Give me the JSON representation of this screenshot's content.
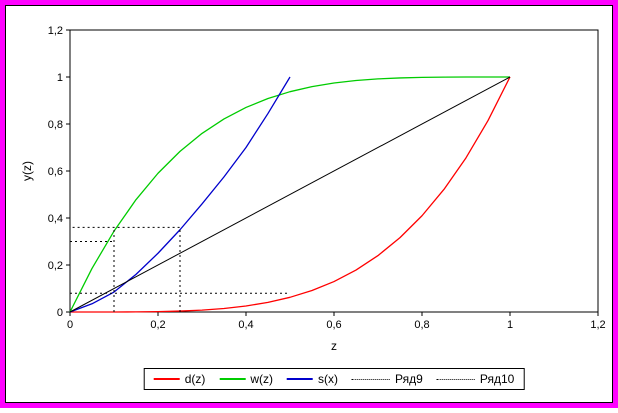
{
  "window": {
    "border_color": "#ff00ff",
    "background": "#ffffff"
  },
  "chart_data": {
    "type": "line",
    "title": "",
    "xlabel": "z",
    "ylabel": "y(z)",
    "xlim": [
      0,
      1.2
    ],
    "ylim": [
      0,
      1.2
    ],
    "grid": false,
    "legend_position": "bottom-center",
    "x_ticks": {
      "values": [
        0,
        0.2,
        0.4,
        0.6,
        0.8,
        1,
        1.2
      ],
      "labels": [
        "0",
        "0,2",
        "0,4",
        "0,6",
        "0,8",
        "1",
        "1,2"
      ]
    },
    "y_ticks": {
      "values": [
        0,
        0.2,
        0.4,
        0.6,
        0.8,
        1,
        1.2
      ],
      "labels": [
        "0",
        "0,2",
        "0,4",
        "0,6",
        "0,8",
        "1",
        "1,2"
      ]
    },
    "series": [
      {
        "name": "d(z)",
        "color": "#ff0000",
        "width": 1.3,
        "x": [
          0,
          0.05,
          0.1,
          0.15,
          0.2,
          0.25,
          0.3,
          0.35,
          0.4,
          0.45,
          0.5,
          0.55,
          0.6,
          0.65,
          0.7,
          0.75,
          0.8,
          0.85,
          0.9,
          0.95,
          1
        ],
        "y": [
          0,
          0.0001,
          0.0001,
          0.0005,
          0.0016,
          0.0039,
          0.0081,
          0.015,
          0.0256,
          0.041,
          0.0625,
          0.0915,
          0.1296,
          0.1785,
          0.2401,
          0.3164,
          0.4096,
          0.522,
          0.6561,
          0.8145,
          1
        ]
      },
      {
        "name": "w(z)",
        "color": "#00cc00",
        "width": 1.3,
        "x": [
          0,
          0.05,
          0.1,
          0.15,
          0.2,
          0.25,
          0.3,
          0.35,
          0.4,
          0.45,
          0.5,
          0.55,
          0.6,
          0.65,
          0.7,
          0.75,
          0.8,
          0.85,
          0.9,
          0.95,
          1
        ],
        "y": [
          0,
          0.1855,
          0.3439,
          0.478,
          0.5904,
          0.6836,
          0.7599,
          0.8215,
          0.8704,
          0.9085,
          0.9375,
          0.959,
          0.9744,
          0.985,
          0.9919,
          0.9961,
          0.9984,
          0.9995,
          0.9999,
          1,
          1
        ]
      },
      {
        "name": "s(x)",
        "color": "#0000cc",
        "width": 1.3,
        "x": [
          0,
          0.05,
          0.1,
          0.15,
          0.2,
          0.25,
          0.3,
          0.35,
          0.4,
          0.45,
          0.5
        ],
        "y": [
          0,
          0.035,
          0.085,
          0.16,
          0.25,
          0.35,
          0.46,
          0.575,
          0.7,
          0.845,
          1
        ]
      },
      {
        "name": "diagonal",
        "color": "#000000",
        "width": 1,
        "x": [
          0,
          1
        ],
        "y": [
          0,
          1
        ]
      }
    ],
    "dashed_series": [
      {
        "name": "Ряд9",
        "color": "#000000",
        "polylines": [
          [
            [
              0.25,
              0
            ],
            [
              0.25,
              0.36
            ],
            [
              0,
              0.36
            ]
          ]
        ]
      },
      {
        "name": "Ряд10",
        "color": "#000000",
        "polylines": [
          [
            [
              0.1,
              0
            ],
            [
              0.1,
              0.36
            ]
          ],
          [
            [
              0,
              0.3
            ],
            [
              0.1,
              0.3
            ]
          ],
          [
            [
              0,
              0.08
            ],
            [
              0.5,
              0.08
            ]
          ]
        ]
      }
    ],
    "legend": {
      "items": [
        {
          "label": "d(z)",
          "color": "#ff0000",
          "style": "solid"
        },
        {
          "label": "w(z)",
          "color": "#00cc00",
          "style": "solid"
        },
        {
          "label": "s(x)",
          "color": "#0000cc",
          "style": "solid"
        },
        {
          "label": "Ряд9",
          "color": "#000000",
          "style": "dotted"
        },
        {
          "label": "Ряд10",
          "color": "#000000",
          "style": "dotted"
        }
      ]
    }
  }
}
